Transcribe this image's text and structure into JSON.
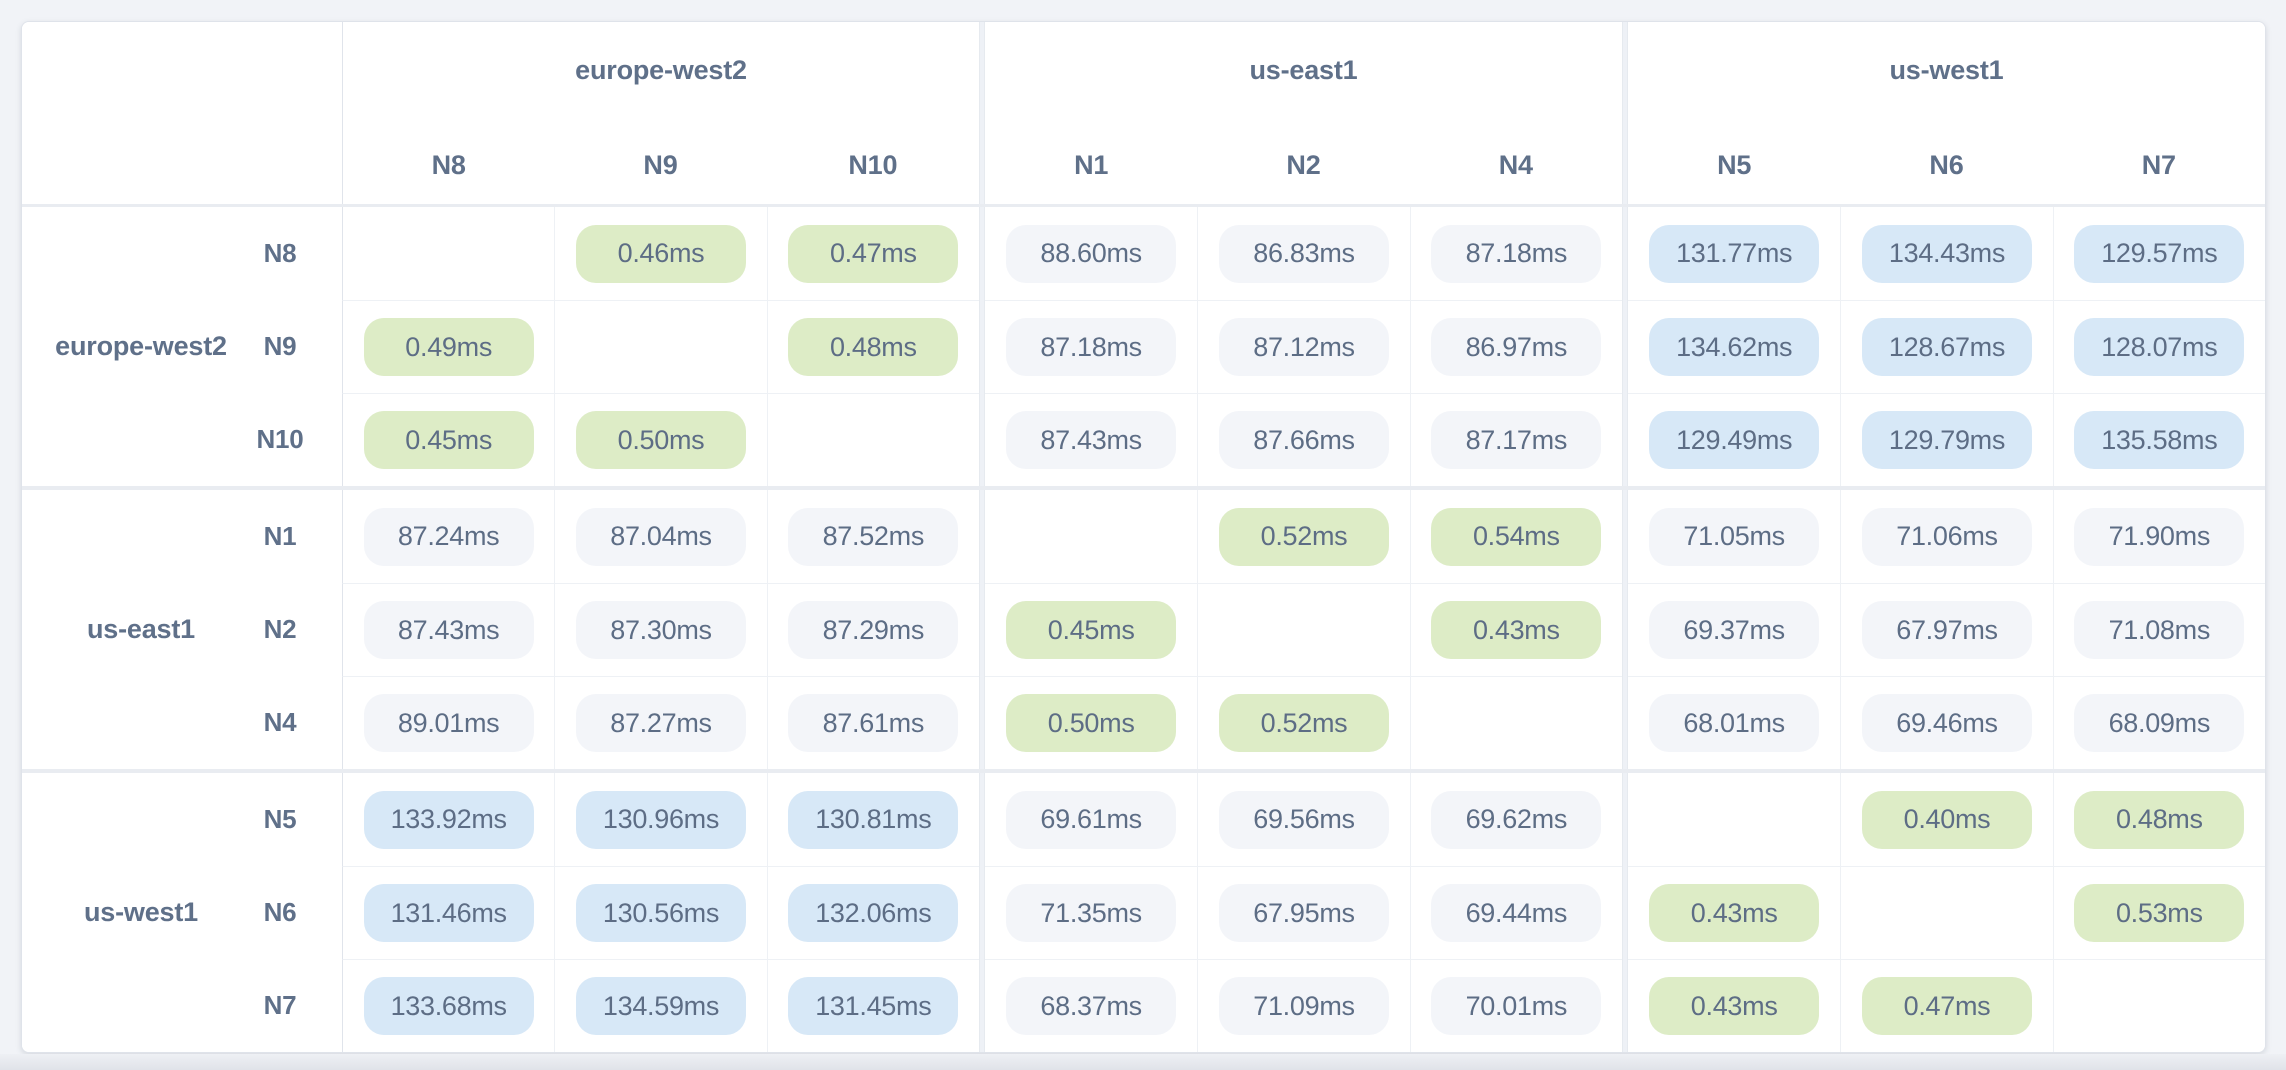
{
  "matrix": {
    "regions": [
      {
        "name": "europe-west2",
        "nodes": [
          "N8",
          "N9",
          "N10"
        ]
      },
      {
        "name": "us-east1",
        "nodes": [
          "N1",
          "N2",
          "N4"
        ]
      },
      {
        "name": "us-west1",
        "nodes": [
          "N5",
          "N6",
          "N7"
        ]
      }
    ],
    "rows": [
      {
        "region": "europe-west2",
        "node": "N8",
        "cells": [
          null,
          "0.46ms",
          "0.47ms",
          "88.60ms",
          "86.83ms",
          "87.18ms",
          "131.77ms",
          "134.43ms",
          "129.57ms"
        ]
      },
      {
        "region": "europe-west2",
        "node": "N9",
        "cells": [
          "0.49ms",
          null,
          "0.48ms",
          "87.18ms",
          "87.12ms",
          "86.97ms",
          "134.62ms",
          "128.67ms",
          "128.07ms"
        ]
      },
      {
        "region": "europe-west2",
        "node": "N10",
        "cells": [
          "0.45ms",
          "0.50ms",
          null,
          "87.43ms",
          "87.66ms",
          "87.17ms",
          "129.49ms",
          "129.79ms",
          "135.58ms"
        ]
      },
      {
        "region": "us-east1",
        "node": "N1",
        "cells": [
          "87.24ms",
          "87.04ms",
          "87.52ms",
          null,
          "0.52ms",
          "0.54ms",
          "71.05ms",
          "71.06ms",
          "71.90ms"
        ]
      },
      {
        "region": "us-east1",
        "node": "N2",
        "cells": [
          "87.43ms",
          "87.30ms",
          "87.29ms",
          "0.45ms",
          null,
          "0.43ms",
          "69.37ms",
          "67.97ms",
          "71.08ms"
        ]
      },
      {
        "region": "us-east1",
        "node": "N4",
        "cells": [
          "89.01ms",
          "87.27ms",
          "87.61ms",
          "0.50ms",
          "0.52ms",
          null,
          "68.01ms",
          "69.46ms",
          "68.09ms"
        ]
      },
      {
        "region": "us-west1",
        "node": "N5",
        "cells": [
          "133.92ms",
          "130.96ms",
          "130.81ms",
          "69.61ms",
          "69.56ms",
          "69.62ms",
          null,
          "0.40ms",
          "0.48ms"
        ]
      },
      {
        "region": "us-west1",
        "node": "N6",
        "cells": [
          "131.46ms",
          "130.56ms",
          "132.06ms",
          "71.35ms",
          "67.95ms",
          "69.44ms",
          "0.43ms",
          null,
          "0.53ms"
        ]
      },
      {
        "region": "us-west1",
        "node": "N7",
        "cells": [
          "133.68ms",
          "134.59ms",
          "131.45ms",
          "68.37ms",
          "71.09ms",
          "70.01ms",
          "0.43ms",
          "0.47ms",
          null
        ]
      }
    ]
  },
  "chart_data": {
    "type": "heatmap",
    "title": "",
    "unit": "ms",
    "columns": [
      "N8",
      "N9",
      "N10",
      "N1",
      "N2",
      "N4",
      "N5",
      "N6",
      "N7"
    ],
    "column_groups": [
      "europe-west2",
      "europe-west2",
      "europe-west2",
      "us-east1",
      "us-east1",
      "us-east1",
      "us-west1",
      "us-west1",
      "us-west1"
    ],
    "rows": [
      {
        "group": "europe-west2",
        "label": "N8",
        "values": [
          null,
          0.46,
          0.47,
          88.6,
          86.83,
          87.18,
          131.77,
          134.43,
          129.57
        ]
      },
      {
        "group": "europe-west2",
        "label": "N9",
        "values": [
          0.49,
          null,
          0.48,
          87.18,
          87.12,
          86.97,
          134.62,
          128.67,
          128.07
        ]
      },
      {
        "group": "europe-west2",
        "label": "N10",
        "values": [
          0.45,
          0.5,
          null,
          87.43,
          87.66,
          87.17,
          129.49,
          129.79,
          135.58
        ]
      },
      {
        "group": "us-east1",
        "label": "N1",
        "values": [
          87.24,
          87.04,
          87.52,
          null,
          0.52,
          0.54,
          71.05,
          71.06,
          71.9
        ]
      },
      {
        "group": "us-east1",
        "label": "N2",
        "values": [
          87.43,
          87.3,
          87.29,
          0.45,
          null,
          0.43,
          69.37,
          67.97,
          71.08
        ]
      },
      {
        "group": "us-east1",
        "label": "N4",
        "values": [
          89.01,
          87.27,
          87.61,
          0.5,
          0.52,
          null,
          68.01,
          69.46,
          68.09
        ]
      },
      {
        "group": "us-west1",
        "label": "N5",
        "values": [
          133.92,
          130.96,
          130.81,
          69.61,
          69.56,
          69.62,
          null,
          0.4,
          0.48
        ]
      },
      {
        "group": "us-west1",
        "label": "N6",
        "values": [
          131.46,
          130.56,
          132.06,
          71.35,
          67.95,
          69.44,
          0.43,
          null,
          0.53
        ]
      },
      {
        "group": "us-west1",
        "label": "N7",
        "values": [
          133.68,
          134.59,
          131.45,
          68.37,
          71.09,
          70.01,
          0.43,
          0.47,
          null
        ]
      }
    ]
  },
  "colors": {
    "pill_low": "#ddecc6",
    "pill_mid": "#f3f5f9",
    "pill_high": "#d7e8f7",
    "value_text": "#5d6d85",
    "header_text": "#5f7089",
    "page_bg": "#f1f3f7",
    "card_border": "#dfe3ea",
    "grid_line": "#eef1f5",
    "group_separator": "#e9ecf1"
  }
}
